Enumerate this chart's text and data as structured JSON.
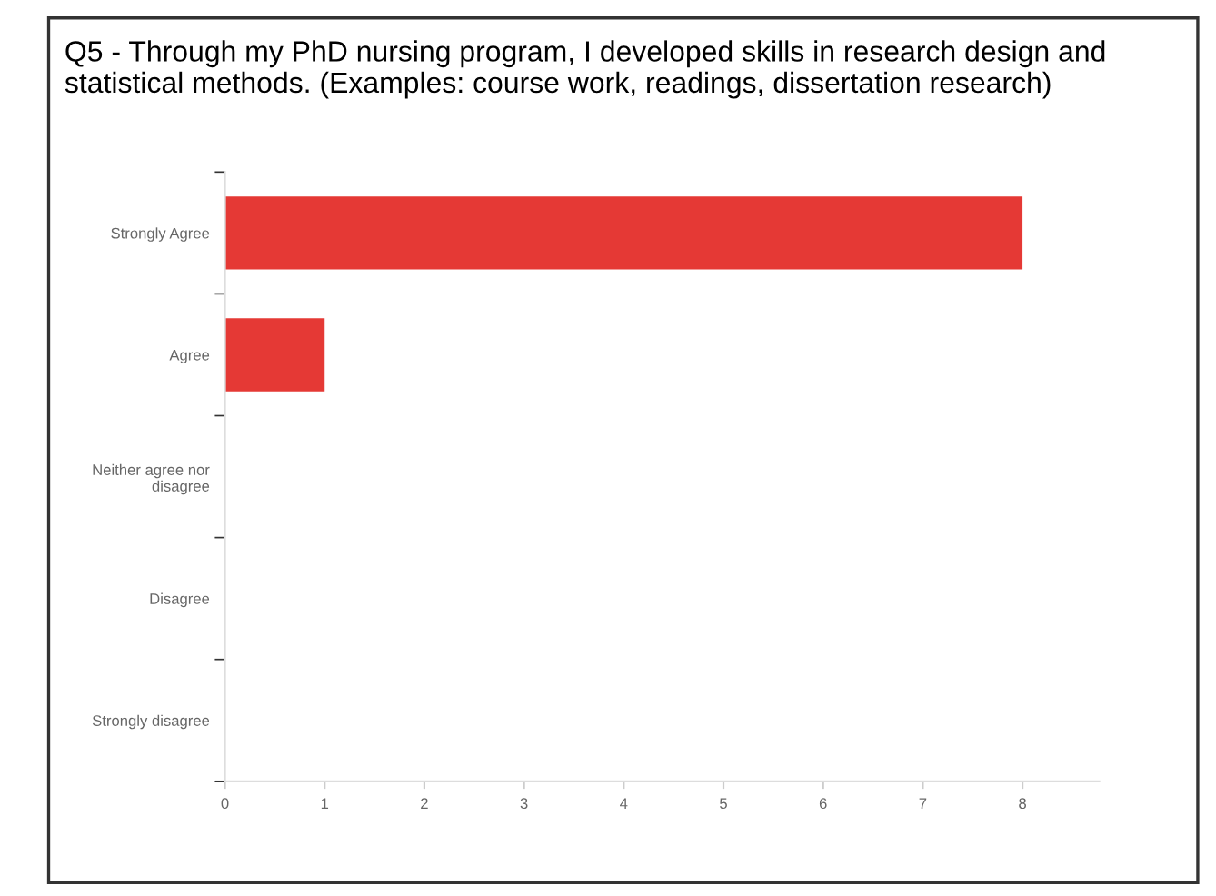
{
  "chart_data": {
    "type": "bar",
    "orientation": "horizontal",
    "title": "Q5 - Through my PhD nursing program, I developed skills in research design and statistical methods. (Examples: course work, readings, dissertation research)",
    "categories": [
      "Strongly Agree",
      "Agree",
      "Neither agree nor\ndisagree",
      "Disagree",
      "Strongly disagree"
    ],
    "values": [
      8,
      1,
      0,
      0,
      0
    ],
    "color": "#e53935",
    "xlim": [
      0,
      8.77
    ],
    "xticks": [
      0,
      1,
      2,
      3,
      4,
      5,
      6,
      7,
      8
    ],
    "grid": false,
    "legend": false
  }
}
